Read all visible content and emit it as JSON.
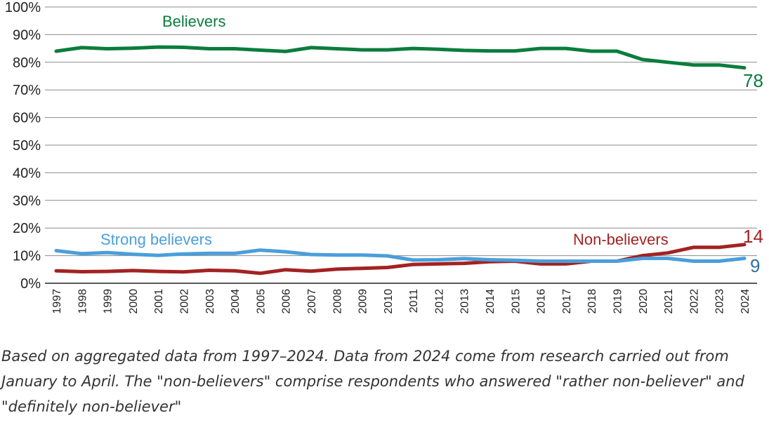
{
  "chart_data": {
    "type": "line",
    "x": [
      1997,
      1998,
      1999,
      2000,
      2001,
      2002,
      2003,
      2004,
      2005,
      2006,
      2007,
      2008,
      2009,
      2010,
      2011,
      2012,
      2013,
      2014,
      2015,
      2016,
      2017,
      2018,
      2019,
      2020,
      2021,
      2022,
      2023,
      2024
    ],
    "series": [
      {
        "name": "Believers",
        "color": "#0a7d3c",
        "values": [
          84,
          85.3,
          84.9,
          85.1,
          85.5,
          85.4,
          84.9,
          84.9,
          84.4,
          83.9,
          85.3,
          84.9,
          84.5,
          84.5,
          85,
          84.7,
          84.3,
          84.1,
          84.1,
          85,
          85,
          84,
          84,
          81,
          80,
          79,
          79,
          78
        ],
        "end_label": "78"
      },
      {
        "name": "Strong believers",
        "color": "#4a9edb",
        "values": [
          11.8,
          10.7,
          11.1,
          10.5,
          10.1,
          10.6,
          10.8,
          10.8,
          12,
          11.4,
          10.4,
          10.2,
          10.2,
          9.9,
          8.4,
          8.5,
          8.9,
          8.5,
          8.3,
          8,
          8,
          8,
          8,
          9,
          9,
          8,
          8,
          9
        ],
        "end_label": "9"
      },
      {
        "name": "Non-believers",
        "color": "#a32222",
        "values": [
          4.5,
          4.2,
          4.3,
          4.6,
          4.3,
          4.1,
          4.7,
          4.5,
          3.6,
          4.9,
          4.4,
          5.1,
          5.4,
          5.7,
          6.8,
          7,
          7.2,
          7.8,
          8,
          7,
          7,
          8,
          8,
          10,
          11,
          13,
          13,
          14
        ],
        "end_label": "14"
      }
    ],
    "y_ticks": [
      "0%",
      "10%",
      "20%",
      "30%",
      "40%",
      "50%",
      "60%",
      "70%",
      "80%",
      "90%",
      "100%"
    ],
    "x_ticks": [
      "1997",
      "1998",
      "1999",
      "2000",
      "2001",
      "2002",
      "2003",
      "2004",
      "2005",
      "2006",
      "2007",
      "2008",
      "2009",
      "2010",
      "2011",
      "2012",
      "2013",
      "2014",
      "2015",
      "2016",
      "2017",
      "2018",
      "2019",
      "2020",
      "2021",
      "2022",
      "2023",
      "2024"
    ],
    "ylim": [
      0,
      100
    ],
    "grid": true,
    "legend": "inline labels",
    "title": "",
    "xlabel": "",
    "ylabel": ""
  },
  "note": "Based on aggregated data from 1997–2024. Data from 2024 come from research carried out from January to April. The \"non-believers\" comprise respondents who answered \"rather non-believer\" and \"definitely non-believer\""
}
